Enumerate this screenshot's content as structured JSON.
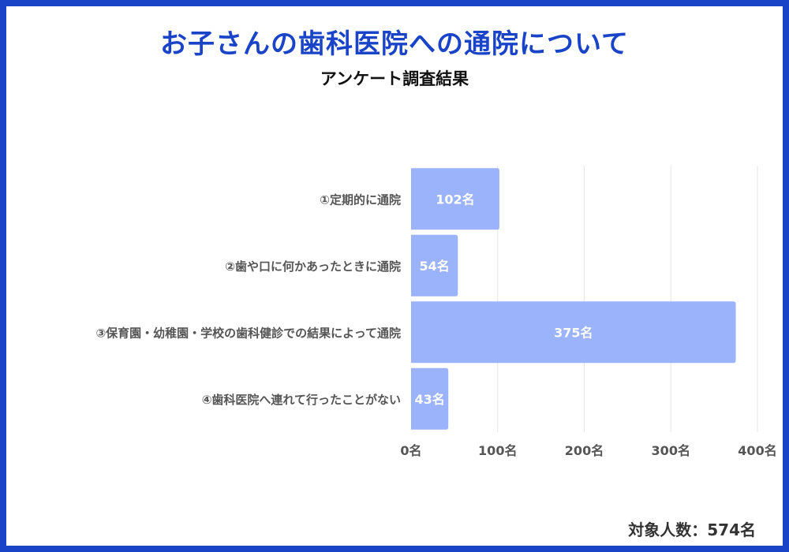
{
  "title": "お子さんの歯科医院への通院について",
  "subtitle": "アンケート調査結果",
  "footer": "対象人数：574名",
  "colors": {
    "bar": "#9ab3fb",
    "frame": "#1a44c8",
    "grid": "#e6e6e6",
    "label": "#555555",
    "value": "#ffffff"
  },
  "chart_data": {
    "type": "bar",
    "orientation": "horizontal",
    "categories": [
      "①定期的に通院",
      "②歯や口に何かあったときに通院",
      "③保育園・幼稚園・学校の歯科健診での結果によって通院",
      "④歯科医院へ連れて行ったことがない"
    ],
    "values": [
      102,
      54,
      375,
      43
    ],
    "value_labels": [
      "102名",
      "54名",
      "375名",
      "43名"
    ],
    "xlim": [
      0,
      400
    ],
    "xticks": [
      0,
      100,
      200,
      300,
      400
    ],
    "xtick_labels": [
      "0名",
      "100名",
      "200名",
      "300名",
      "400名"
    ],
    "grid": true,
    "legend": "none"
  }
}
